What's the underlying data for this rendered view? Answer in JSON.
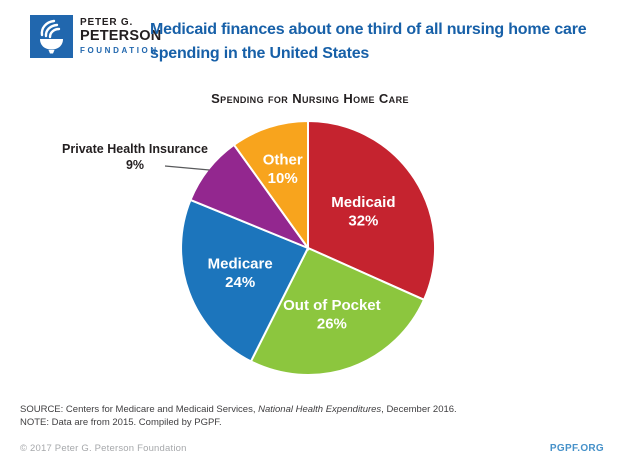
{
  "logo": {
    "line1": "PETER G.",
    "line2": "PETERSON",
    "line3": "FOUNDATION"
  },
  "header": {
    "title_line1": "Medicaid finances about one third of all nursing home care",
    "title_line2": "spending in the United States",
    "title_color": "#1760A8"
  },
  "chart_data": {
    "type": "pie",
    "title": "Spending for Nursing Home Care",
    "unit": "%",
    "start_angle_deg": 0,
    "direction": "clockwise",
    "legend_position": "labels-on-slices",
    "slices": [
      {
        "label": "Medicaid",
        "value": 32,
        "color": "#C5232F",
        "label_r": 0.52,
        "label_color": "#FFFFFF"
      },
      {
        "label": "Out of Pocket",
        "value": 26,
        "color": "#8CC63E",
        "label_r": 0.56,
        "label_color": "#FFFFFF"
      },
      {
        "label": "Medicare",
        "value": 24,
        "color": "#1C75BC",
        "label_r": 0.57,
        "label_color": "#FFFFFF"
      },
      {
        "label": "Private Health Insurance",
        "value": 9,
        "color": "#93278F",
        "external_label": true,
        "label_color": "#231F20"
      },
      {
        "label": "Other",
        "value": 10,
        "color": "#F8A41D",
        "label_r": 0.65,
        "label_color": "#FFFFFF"
      }
    ]
  },
  "source": {
    "prefix": "SOURCE: Centers for Medicare and Medicaid Services, ",
    "italic": "National Health Expenditures",
    "suffix": ", December 2016.",
    "note": "NOTE: Data are from 2015. Compiled by PGPF."
  },
  "footer": {
    "copyright": "© 2017 Peter G. Peterson Foundation",
    "site": "PGPF.ORG",
    "site_color": "#4691C9"
  }
}
